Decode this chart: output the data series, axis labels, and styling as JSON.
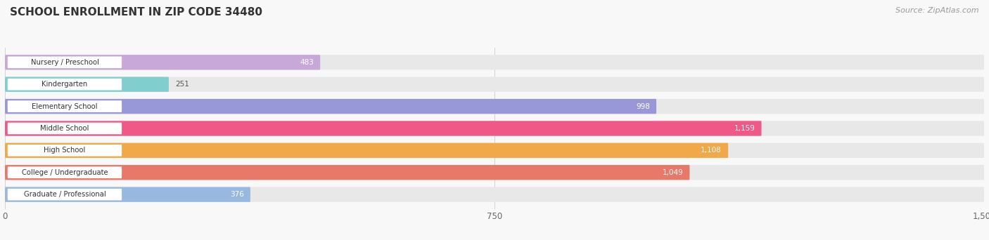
{
  "title": "SCHOOL ENROLLMENT IN ZIP CODE 34480",
  "source": "Source: ZipAtlas.com",
  "categories": [
    "Nursery / Preschool",
    "Kindergarten",
    "Elementary School",
    "Middle School",
    "High School",
    "College / Undergraduate",
    "Graduate / Professional"
  ],
  "values": [
    483,
    251,
    998,
    1159,
    1108,
    1049,
    376
  ],
  "bar_colors": [
    "#c8a8d8",
    "#80cece",
    "#9898d8",
    "#f05888",
    "#f0a848",
    "#e87868",
    "#98b8e0"
  ],
  "bar_bg_color": "#e8e8e8",
  "label_bg_color": "#ffffff",
  "x_max": 1500,
  "x_ticks": [
    0,
    750,
    1500
  ],
  "x_tick_labels": [
    "0",
    "750",
    "1,500"
  ],
  "background_color": "#f8f8f8",
  "title_fontsize": 11,
  "source_fontsize": 8,
  "bar_height": 0.68,
  "value_inside_threshold": 300
}
